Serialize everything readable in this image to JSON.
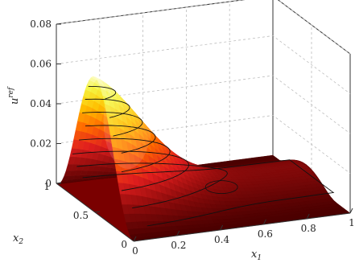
{
  "chart_data": {
    "type": "surface3d",
    "zlabel": "u",
    "zlabel_superscript": "ref",
    "xlabel": "x",
    "xlabel_subscript": "1",
    "ylabel": "x",
    "ylabel_subscript": "2",
    "xlim": [
      0,
      1
    ],
    "ylim": [
      0,
      1
    ],
    "zlim": [
      0,
      0.08
    ],
    "x_ticks": [
      "0",
      "0.2",
      "0.4",
      "0.6",
      "0.8",
      "1"
    ],
    "y_ticks": [
      "0",
      "0.5",
      "1"
    ],
    "z_ticks": [
      "0",
      "0.02",
      "0.04",
      "0.06",
      "0.08"
    ],
    "grid": true,
    "contour_levels": [
      0.004,
      0.012,
      0.02,
      0.028,
      0.036,
      0.044,
      0.052,
      0.06,
      0.068
    ],
    "peak": {
      "x1": 0.0,
      "x2": 0.5,
      "u": 0.068
    },
    "colormap": [
      "#4a0000",
      "#8c0b0b",
      "#e01e1e",
      "#ff6a00",
      "#ffc000",
      "#f5f542",
      "#ffffff"
    ]
  }
}
